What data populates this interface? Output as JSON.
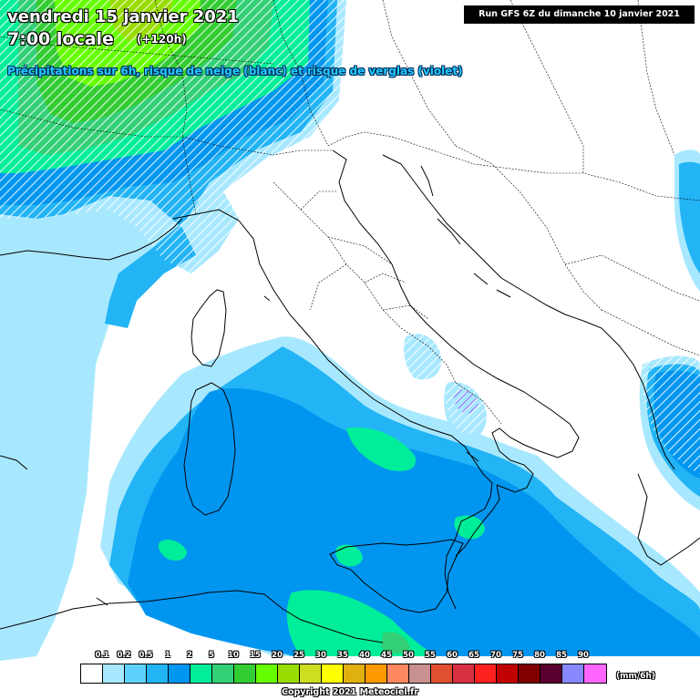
{
  "header": {
    "date": "vendredi 15 janvier 2021",
    "time": "7:00 locale",
    "lead": "(+120h)",
    "subtitle": "Précipitations sur 6h, risque de neige (blanc) et risque de verglas (violet)",
    "run": "Run GFS 6Z du dimanche 10 janvier 2021"
  },
  "legend": {
    "unit": "(mm/6h)",
    "labels": [
      "0.1",
      "0.2",
      "0.5",
      "1",
      "2",
      "5",
      "10",
      "15",
      "20",
      "25",
      "30",
      "35",
      "40",
      "45",
      "50",
      "55",
      "60",
      "65",
      "70",
      "75",
      "80",
      "85",
      "90"
    ],
    "colors": [
      "#ffffff",
      "#a8e8ff",
      "#5ed2fa",
      "#22b4f5",
      "#0096f0",
      "#00ee99",
      "#33d077",
      "#33cc33",
      "#66ff00",
      "#99dd00",
      "#ccdd22",
      "#ffff00",
      "#e0b010",
      "#ff9900",
      "#ff8860",
      "#c89090",
      "#e05030",
      "#d83040",
      "#ff2020",
      "#c00000",
      "#800000",
      "#5a0030",
      "#8888ff",
      "#ff66ff"
    ]
  },
  "footer": {
    "copyright": "Copyright 2021 Meteociel.fr"
  },
  "colors": {
    "light_blue": "#a8e8ff",
    "medium_blue": "#22b4f5",
    "blue": "#0096f0",
    "aqua_green": "#00ee99",
    "green": "#33cc33",
    "light_green": "#66ff00",
    "border": "#000000"
  }
}
